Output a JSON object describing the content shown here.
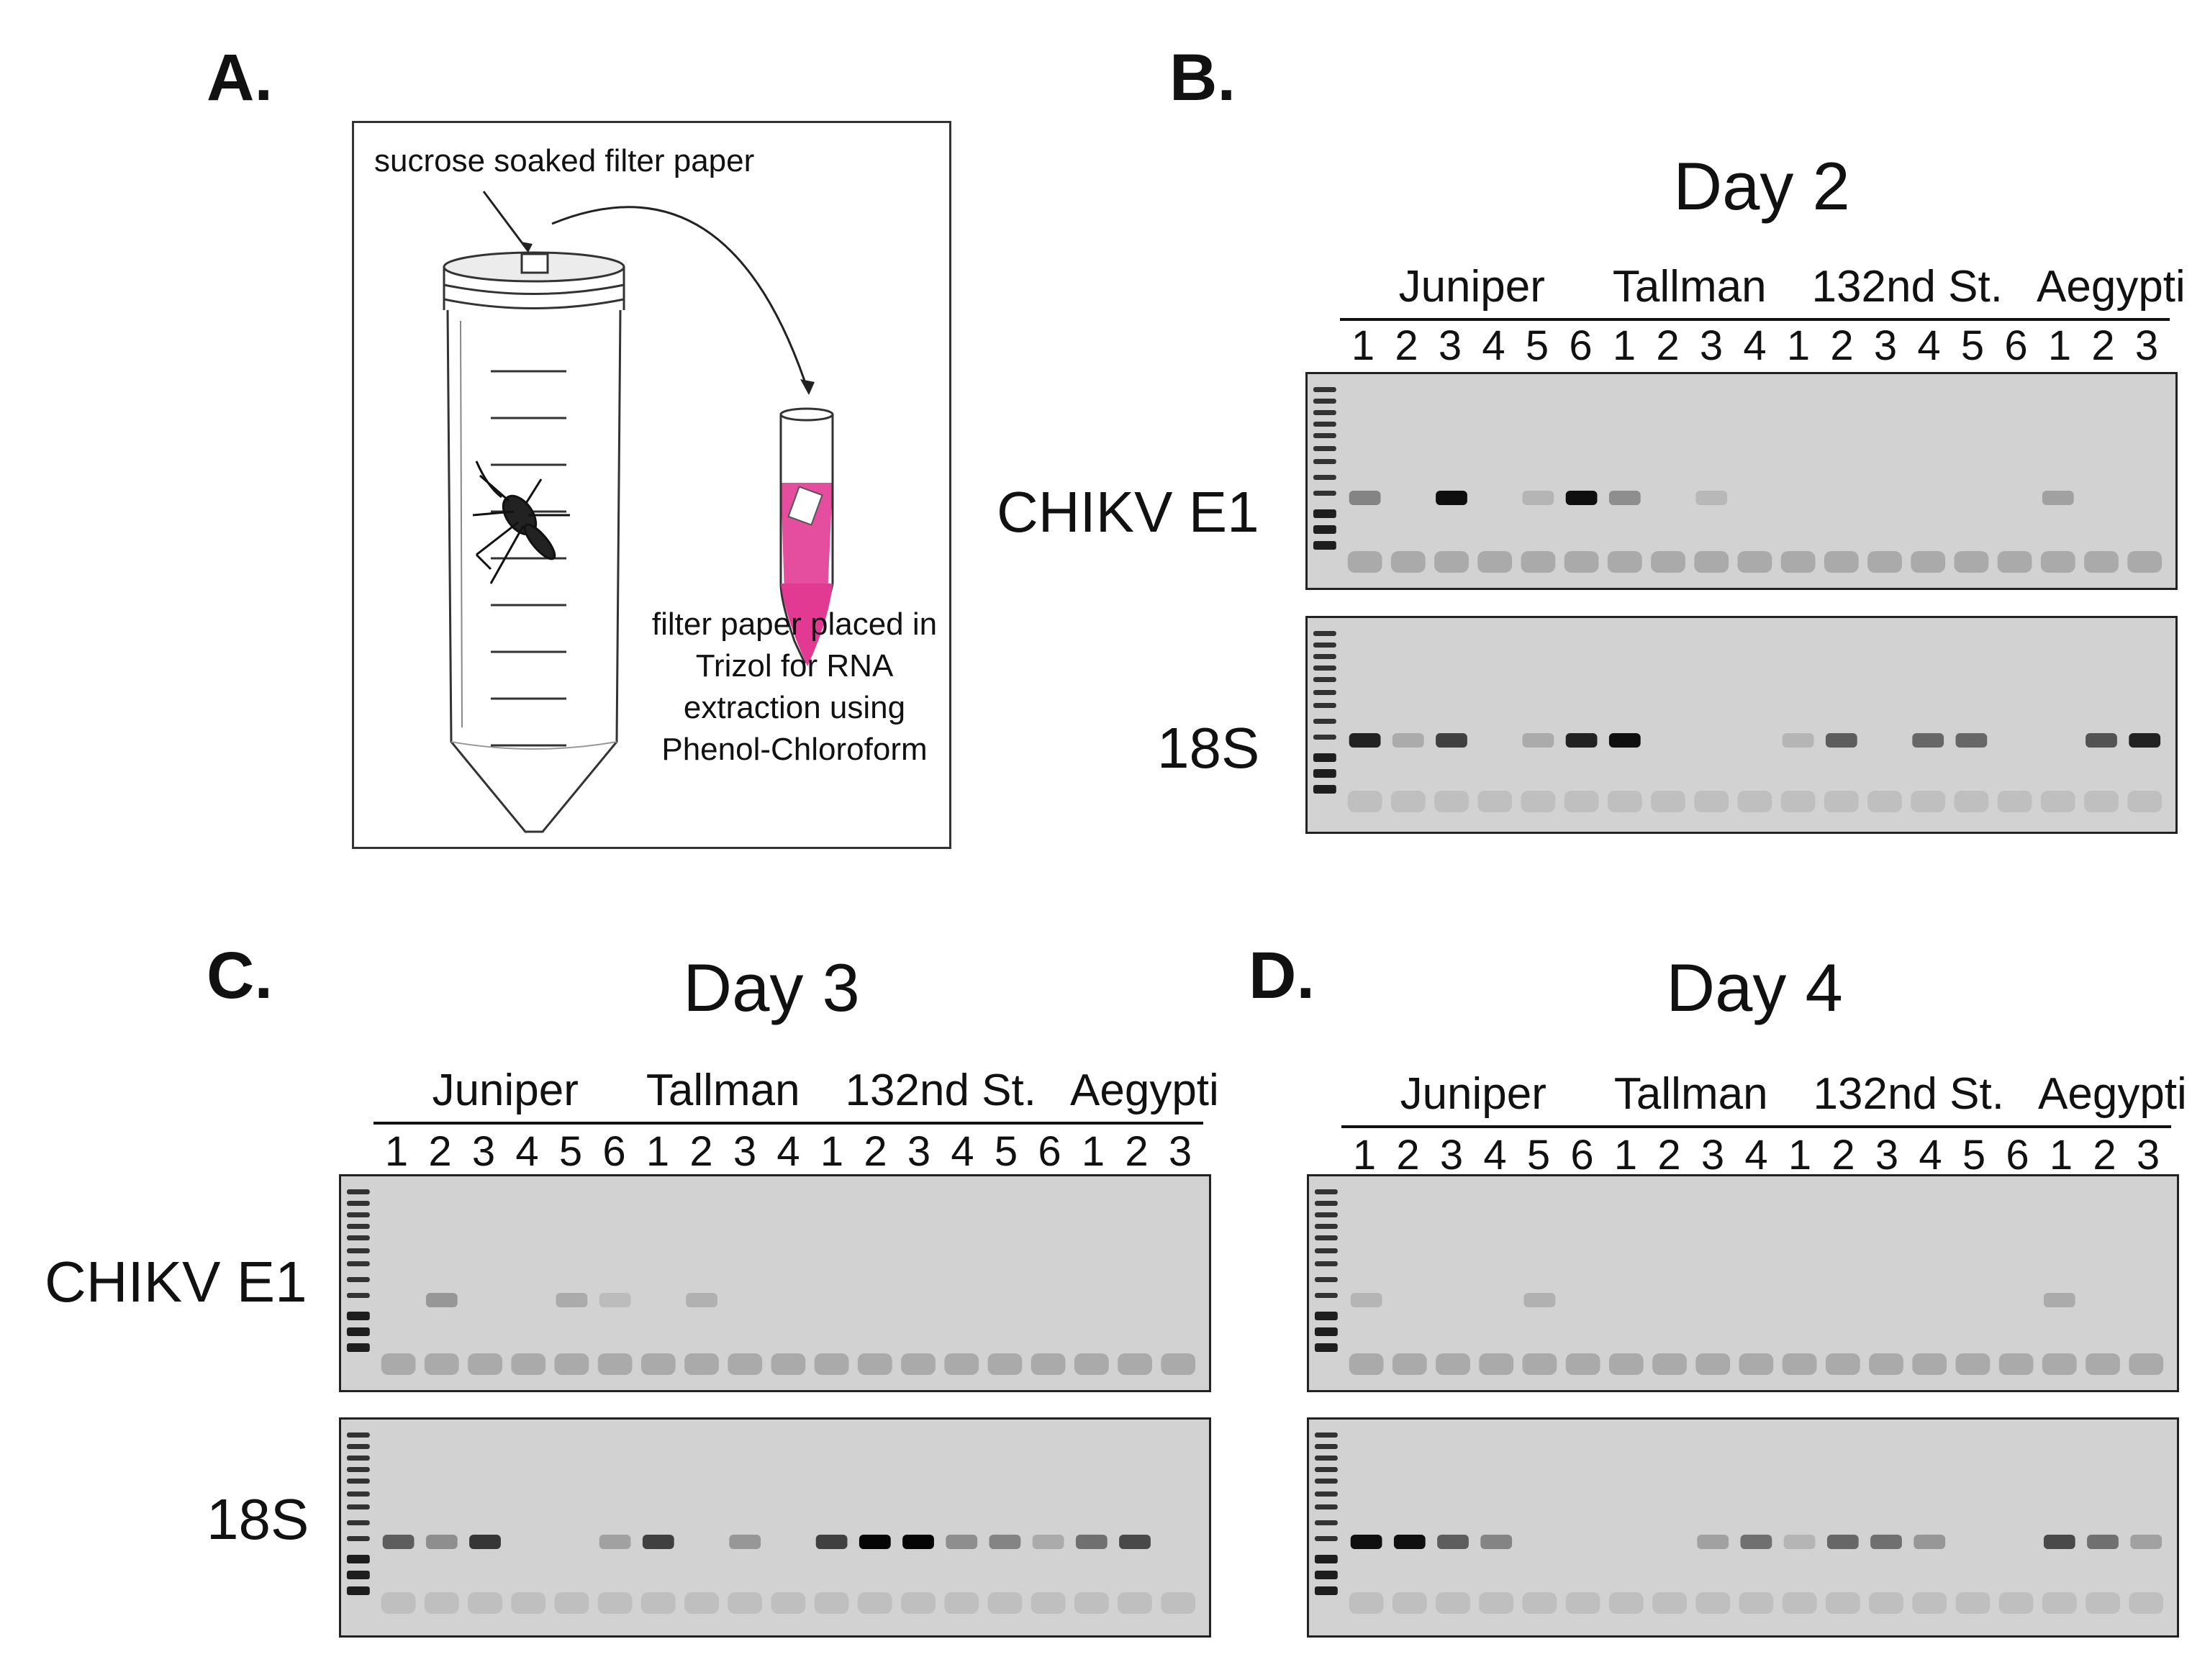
{
  "panels": {
    "a": {
      "letter": "A."
    },
    "b": {
      "letter": "B."
    },
    "c": {
      "letter": "C."
    },
    "d": {
      "letter": "D."
    }
  },
  "schematic": {
    "top_label": "sucrose soaked filter paper",
    "caption_lines": [
      "filter paper placed in",
      "Trizol for RNA",
      "extraction using",
      "Phenol-Chloroform"
    ],
    "colors": {
      "trizol": "#e23a93",
      "outline": "#333333"
    }
  },
  "gel_figure": {
    "groups": [
      {
        "name": "Juniper",
        "lanes": [
          "1",
          "2",
          "3",
          "4",
          "5",
          "6"
        ]
      },
      {
        "name": "Tallman",
        "lanes": [
          "1",
          "2",
          "3",
          "4"
        ]
      },
      {
        "name": "132nd St.",
        "lanes": [
          "1",
          "2",
          "3",
          "4",
          "5",
          "6"
        ]
      },
      {
        "name": "Aegypti",
        "lanes": [
          "1",
          "2",
          "3"
        ]
      }
    ],
    "targets": [
      "CHIKV E1",
      "18S"
    ],
    "days": [
      {
        "title": "Day 2",
        "band_intensity": {
          "CHIKV E1": [
            0.35,
            0,
            0.95,
            0,
            0.1,
            0.95,
            0.3,
            0,
            0.08,
            0,
            0,
            0,
            0,
            0,
            0,
            0,
            0.2,
            0,
            0
          ],
          "18S": [
            0.85,
            0.15,
            0.7,
            0,
            0.15,
            0.85,
            0.95,
            0,
            0,
            0,
            0.1,
            0.55,
            0,
            0.5,
            0.5,
            0,
            0,
            0.6,
            0.85
          ]
        }
      },
      {
        "title": "Day 3",
        "band_intensity": {
          "CHIKV E1": [
            0,
            0.25,
            0,
            0,
            0.15,
            0.06,
            0,
            0.12,
            0,
            0,
            0,
            0,
            0,
            0,
            0,
            0,
            0,
            0,
            0
          ],
          "18S": [
            0.55,
            0.3,
            0.75,
            0,
            0,
            0.2,
            0.7,
            0,
            0.25,
            0,
            0.7,
            1.0,
            1.0,
            0.3,
            0.35,
            0.15,
            0.45,
            0.65,
            0
          ]
        }
      },
      {
        "title": "Day 4",
        "band_intensity": {
          "CHIKV E1": [
            0.1,
            0,
            0,
            0,
            0.12,
            0,
            0,
            0,
            0,
            0,
            0,
            0,
            0,
            0,
            0,
            0,
            0.15,
            0,
            0
          ],
          "18S": [
            0.95,
            0.95,
            0.55,
            0.35,
            0,
            0,
            0,
            0,
            0.2,
            0.45,
            0.1,
            0.5,
            0.45,
            0.25,
            0,
            0,
            0.65,
            0.45,
            0.2
          ]
        }
      }
    ]
  }
}
